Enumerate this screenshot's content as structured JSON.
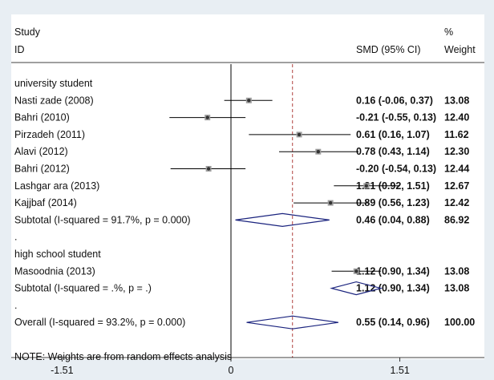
{
  "chart_data": {
    "type": "forest",
    "headers": {
      "study_line1": "Study",
      "study_line2": "ID",
      "effect": "SMD (95% CI)",
      "weight_line1": "%",
      "weight_line2": "Weight"
    },
    "rows": [
      {
        "kind": "group",
        "label": "university student"
      },
      {
        "kind": "study",
        "label": "Nasti zade (2008)",
        "est": 0.16,
        "lo": -0.06,
        "hi": 0.37,
        "ci_text": "0.16 (-0.06, 0.37)",
        "weight": "13.08"
      },
      {
        "kind": "study",
        "label": "Bahri (2010)",
        "est": -0.21,
        "lo": -0.55,
        "hi": 0.13,
        "ci_text": "-0.21 (-0.55, 0.13)",
        "weight": "12.40"
      },
      {
        "kind": "study",
        "label": "Pirzadeh (2011)",
        "est": 0.61,
        "lo": 0.16,
        "hi": 1.07,
        "ci_text": "0.61 (0.16, 1.07)",
        "weight": "11.62"
      },
      {
        "kind": "study",
        "label": "Alavi (2012)",
        "est": 0.78,
        "lo": 0.43,
        "hi": 1.14,
        "ci_text": "0.78 (0.43, 1.14)",
        "weight": "12.30"
      },
      {
        "kind": "study",
        "label": "Bahri (2012)",
        "est": -0.2,
        "lo": -0.54,
        "hi": 0.13,
        "ci_text": "-0.20 (-0.54, 0.13)",
        "weight": "12.44"
      },
      {
        "kind": "study",
        "label": "Lashgar ara (2013)",
        "est": 1.21,
        "lo": 0.92,
        "hi": 1.51,
        "ci_text": "1.21 (0.92, 1.51)",
        "weight": "12.67"
      },
      {
        "kind": "study",
        "label": "Kajjbaf (2014)",
        "est": 0.89,
        "lo": 0.56,
        "hi": 1.23,
        "ci_text": "0.89 (0.56, 1.23)",
        "weight": "12.42"
      },
      {
        "kind": "subtotal",
        "label": "Subtotal  (I-squared = 91.7%, p = 0.000)",
        "est": 0.46,
        "lo": 0.04,
        "hi": 0.88,
        "ci_text": "0.46 (0.04, 0.88)",
        "weight": "86.92"
      },
      {
        "kind": "sep",
        "label": "."
      },
      {
        "kind": "group",
        "label": "high school student"
      },
      {
        "kind": "study",
        "label": "Masoodnia (2013)",
        "est": 1.12,
        "lo": 0.9,
        "hi": 1.34,
        "ci_text": "1.12 (0.90, 1.34)",
        "weight": "13.08"
      },
      {
        "kind": "subtotal",
        "label": "Subtotal  (I-squared = .%, p = .)",
        "est": 1.12,
        "lo": 0.9,
        "hi": 1.34,
        "ci_text": "1.12 (0.90, 1.34)",
        "weight": "13.08"
      },
      {
        "kind": "sep",
        "label": "."
      },
      {
        "kind": "overall",
        "label": "Overall  (I-squared = 93.2%, p = 0.000)",
        "est": 0.55,
        "lo": 0.14,
        "hi": 0.96,
        "ci_text": "0.55 (0.14, 0.96)",
        "weight": "100.00"
      },
      {
        "kind": "sep",
        "label": ""
      },
      {
        "kind": "note",
        "label": "NOTE: Weights are from random effects analysis"
      }
    ],
    "x_ticks": [
      -1.51,
      0,
      1.51
    ],
    "x_tick_labels": [
      "-1.51",
      "0",
      "1.51"
    ],
    "null_line": 0,
    "overall_line": 0.55,
    "xlim": [
      -1.51,
      1.51
    ],
    "colors": {
      "diamond": "#1a237e",
      "overall_line": "#b0413e",
      "marker": "#333333"
    }
  }
}
